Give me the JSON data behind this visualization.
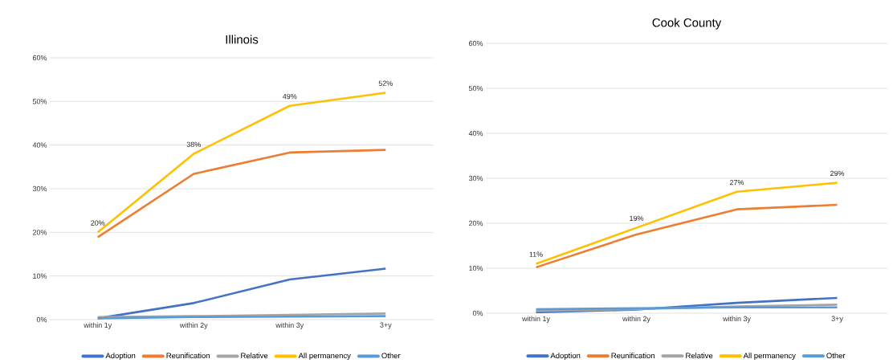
{
  "chart_data": [
    {
      "type": "line",
      "title": "Illinois",
      "categories": [
        "within 1y",
        "within 2y",
        "within 3y",
        "3+y"
      ],
      "ylim": [
        0,
        60
      ],
      "yticks": [
        {
          "value": 0,
          "label": "0%"
        },
        {
          "value": 10,
          "label": "10%"
        },
        {
          "value": 20,
          "label": "20%"
        },
        {
          "value": 30,
          "label": "30%"
        },
        {
          "value": 40,
          "label": "40%"
        },
        {
          "value": 50,
          "label": "50%"
        },
        {
          "value": 60,
          "label": "60%"
        }
      ],
      "grid": "y",
      "legend": "bottom",
      "series": [
        {
          "name": "Adoption",
          "color": "#4472c4",
          "values": [
            0.3,
            3.8,
            9.2,
            11.7
          ]
        },
        {
          "name": "Reunification",
          "color": "#ed7d31",
          "values": [
            18.9,
            33.4,
            38.3,
            38.9
          ]
        },
        {
          "name": "Relative",
          "color": "#a5a5a5",
          "values": [
            0.6,
            0.8,
            1.1,
            1.4
          ]
        },
        {
          "name": "All permanency",
          "color": "#ffc000",
          "values": [
            20,
            38,
            49,
            52
          ],
          "value_labels": [
            "20%",
            "38%",
            "49%",
            "52%"
          ]
        },
        {
          "name": "Other",
          "color": "#5b9bd5",
          "values": [
            0.3,
            0.6,
            0.7,
            0.8
          ]
        }
      ]
    },
    {
      "type": "line",
      "title": "Cook County",
      "categories": [
        "within 1y",
        "within 2y",
        "within 3y",
        "3+y"
      ],
      "ylim": [
        0,
        60
      ],
      "yticks": [
        {
          "value": 0,
          "label": "0%"
        },
        {
          "value": 10,
          "label": "10%"
        },
        {
          "value": 20,
          "label": "20%"
        },
        {
          "value": 30,
          "label": "30%"
        },
        {
          "value": 40,
          "label": "40%"
        },
        {
          "value": 50,
          "label": "50%"
        },
        {
          "value": 60,
          "label": "60%"
        }
      ],
      "grid": "y",
      "legend": "bottom",
      "series": [
        {
          "name": "Adoption",
          "color": "#4472c4",
          "values": [
            0.2,
            0.8,
            2.3,
            3.4
          ]
        },
        {
          "name": "Reunification",
          "color": "#ed7d31",
          "values": [
            10.2,
            17.5,
            23.1,
            24.1
          ]
        },
        {
          "name": "Relative",
          "color": "#a5a5a5",
          "values": [
            0.5,
            0.9,
            1.5,
            1.9
          ]
        },
        {
          "name": "All permanency",
          "color": "#ffc000",
          "values": [
            11,
            19,
            27,
            29
          ],
          "value_labels": [
            "11%",
            "19%",
            "27%",
            "29%"
          ]
        },
        {
          "name": "Other",
          "color": "#5b9bd5",
          "values": [
            0.9,
            1.1,
            1.3,
            1.3
          ]
        }
      ]
    }
  ]
}
